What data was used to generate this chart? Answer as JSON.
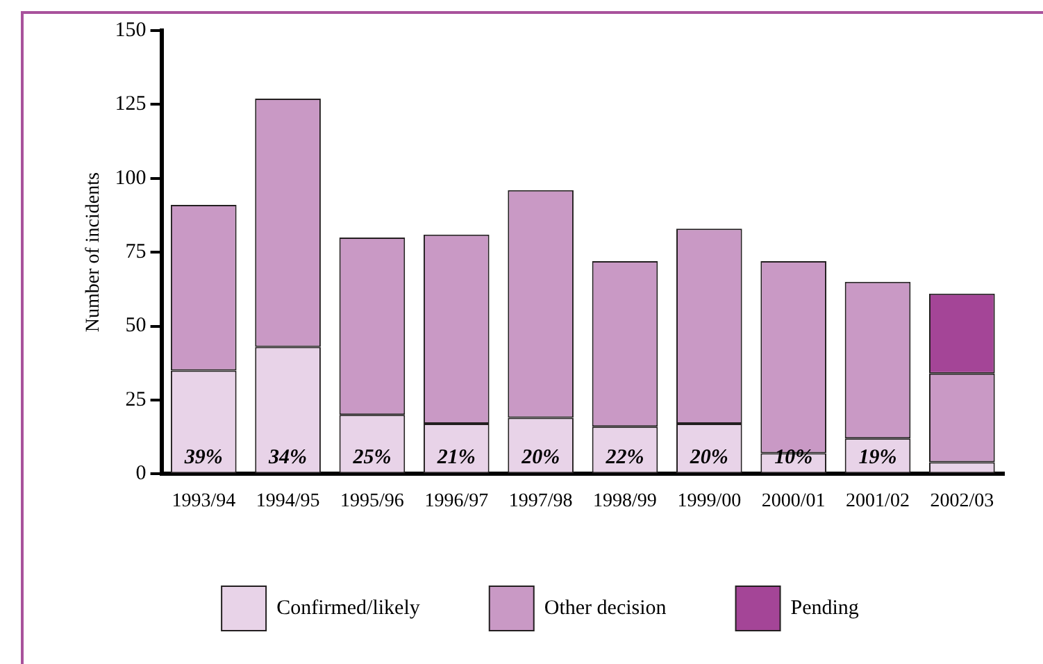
{
  "chart_data": {
    "type": "bar",
    "stacked": true,
    "ylabel": "Number of incidents",
    "categories": [
      "1993/94",
      "1994/95",
      "1995/96",
      "1996/97",
      "1997/98",
      "1998/99",
      "1999/00",
      "2000/01",
      "2001/02",
      "2002/03"
    ],
    "series": [
      {
        "name": "Confirmed/likely",
        "color": "#e8d3e8",
        "values": [
          35,
          43,
          20,
          17,
          19,
          16,
          17,
          7,
          12,
          4
        ]
      },
      {
        "name": "Other decision",
        "color": "#c999c5",
        "values": [
          56,
          84,
          60,
          64,
          77,
          56,
          66,
          65,
          53,
          30
        ]
      },
      {
        "name": "Pending",
        "color": "#a44597",
        "values": [
          null,
          null,
          null,
          null,
          null,
          null,
          null,
          null,
          null,
          27
        ]
      }
    ],
    "annotations": [
      {
        "text": "39%",
        "x": "1993/94",
        "y": 0
      },
      {
        "text": "34%",
        "x": "1994/95",
        "y": 0
      },
      {
        "text": "25%",
        "x": "1995/96",
        "y": 0
      },
      {
        "text": "21%",
        "x": "1996/97",
        "y": 0
      },
      {
        "text": "20%",
        "x": "1997/98",
        "y": 0
      },
      {
        "text": "22%",
        "x": "1998/99",
        "y": 0
      },
      {
        "text": "20%",
        "x": "1999/00",
        "y": 0
      },
      {
        "text": "10%",
        "x": "2000/01",
        "y": 0
      },
      {
        "text": "19%",
        "x": "2001/02",
        "y": 0
      }
    ],
    "ylim": [
      0,
      150
    ],
    "yticks": [
      0,
      25,
      50,
      75,
      100,
      125,
      150
    ],
    "grid": false,
    "legend": "bottom"
  }
}
